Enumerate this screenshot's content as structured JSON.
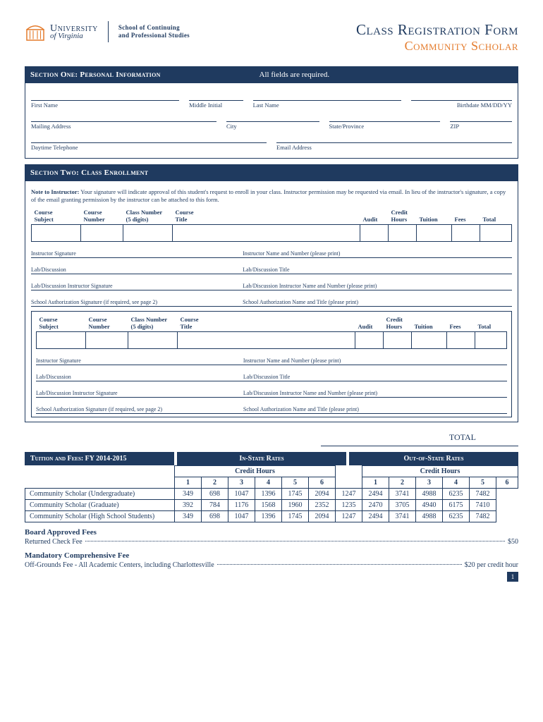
{
  "colors": {
    "navy": "#1f3a5f",
    "orange": "#e47b2c",
    "white": "#ffffff"
  },
  "header": {
    "university": "University",
    "of_virginia": "of Virginia",
    "school_line1": "School of Continuing",
    "school_line2": "and Professional Studies",
    "title1": "Class Registration Form",
    "title2": "Community Scholar"
  },
  "section1": {
    "label": "Section One: Personal Information",
    "note": "All fields are required.",
    "fields": {
      "first_name": "First Name",
      "mi": "Middle Initial",
      "last_name": "Last Name",
      "birthdate": "Birthdate  MM/DD/YY",
      "mailing": "Mailing Address",
      "city": "City",
      "state": "State/Province",
      "zip": "ZIP",
      "phone": "Daytime Telephone",
      "email": "Email Address"
    }
  },
  "section2": {
    "label": "Section Two: Class Enrollment",
    "note_bold": "Note to Instructor:",
    "note_text": " Your signature will indicate approval of this student's request to enroll in your class.  Instructor permission may be requested via email. In lieu of the instructor's signature, a copy of the email granting permission by the instructor can be attached to this form.",
    "cols": {
      "subject": "Course Subject",
      "number": "Course Number",
      "classnum": "Class Number (5 digits)",
      "title": "Course Title",
      "audit": "Audit",
      "credit": "Credit Hours",
      "tuition": "Tuition",
      "fees": "Fees",
      "total": "Total"
    },
    "sig": {
      "instr_sig": "Instructor Signature",
      "instr_name": "Instructor Name and Number (please print)",
      "lab": "Lab/Discussion",
      "lab_title": "Lab/Discussion Title",
      "lab_sig": "Lab/Discussion Instructor Signature",
      "lab_name": "Lab/Discussion Instructor Name and Number (please print)",
      "school_sig": "School Authorization Signature (if required, see page 2)",
      "school_name": "School Authorization Name and Title (please print)"
    },
    "total_label": "TOTAL"
  },
  "rates": {
    "header_left": "Tuition and Fees:  FY 2014-2015",
    "header_in": "In-State Rates",
    "header_out": "Out-of-State Rates",
    "credit_hours": "Credit Hours",
    "hours": [
      "1",
      "2",
      "3",
      "4",
      "5",
      "6"
    ],
    "rows": [
      {
        "label": "Community Scholar (Undergraduate)",
        "in": [
          349,
          698,
          1047,
          1396,
          1745,
          2094
        ],
        "out": [
          1247,
          2494,
          3741,
          4988,
          6235,
          7482
        ]
      },
      {
        "label": "Community Scholar (Graduate)",
        "in": [
          392,
          784,
          1176,
          1568,
          1960,
          2352
        ],
        "out": [
          1235,
          2470,
          3705,
          4940,
          6175,
          7410
        ]
      },
      {
        "label": "Community Scholar (High School Students)",
        "in": [
          349,
          698,
          1047,
          1396,
          1745,
          2094
        ],
        "out": [
          1247,
          2494,
          3741,
          4988,
          6235,
          7482
        ]
      }
    ]
  },
  "fees": {
    "board_heading": "Board Approved Fees",
    "returned_label": "Returned Check Fee",
    "returned_amount": "$50",
    "mand_heading": "Mandatory Comprehensive Fee",
    "off_label": "Off-Grounds Fee - All Academic Centers, including Charlottesville",
    "off_amount": "$20 per credit hour"
  },
  "page_number": "1"
}
